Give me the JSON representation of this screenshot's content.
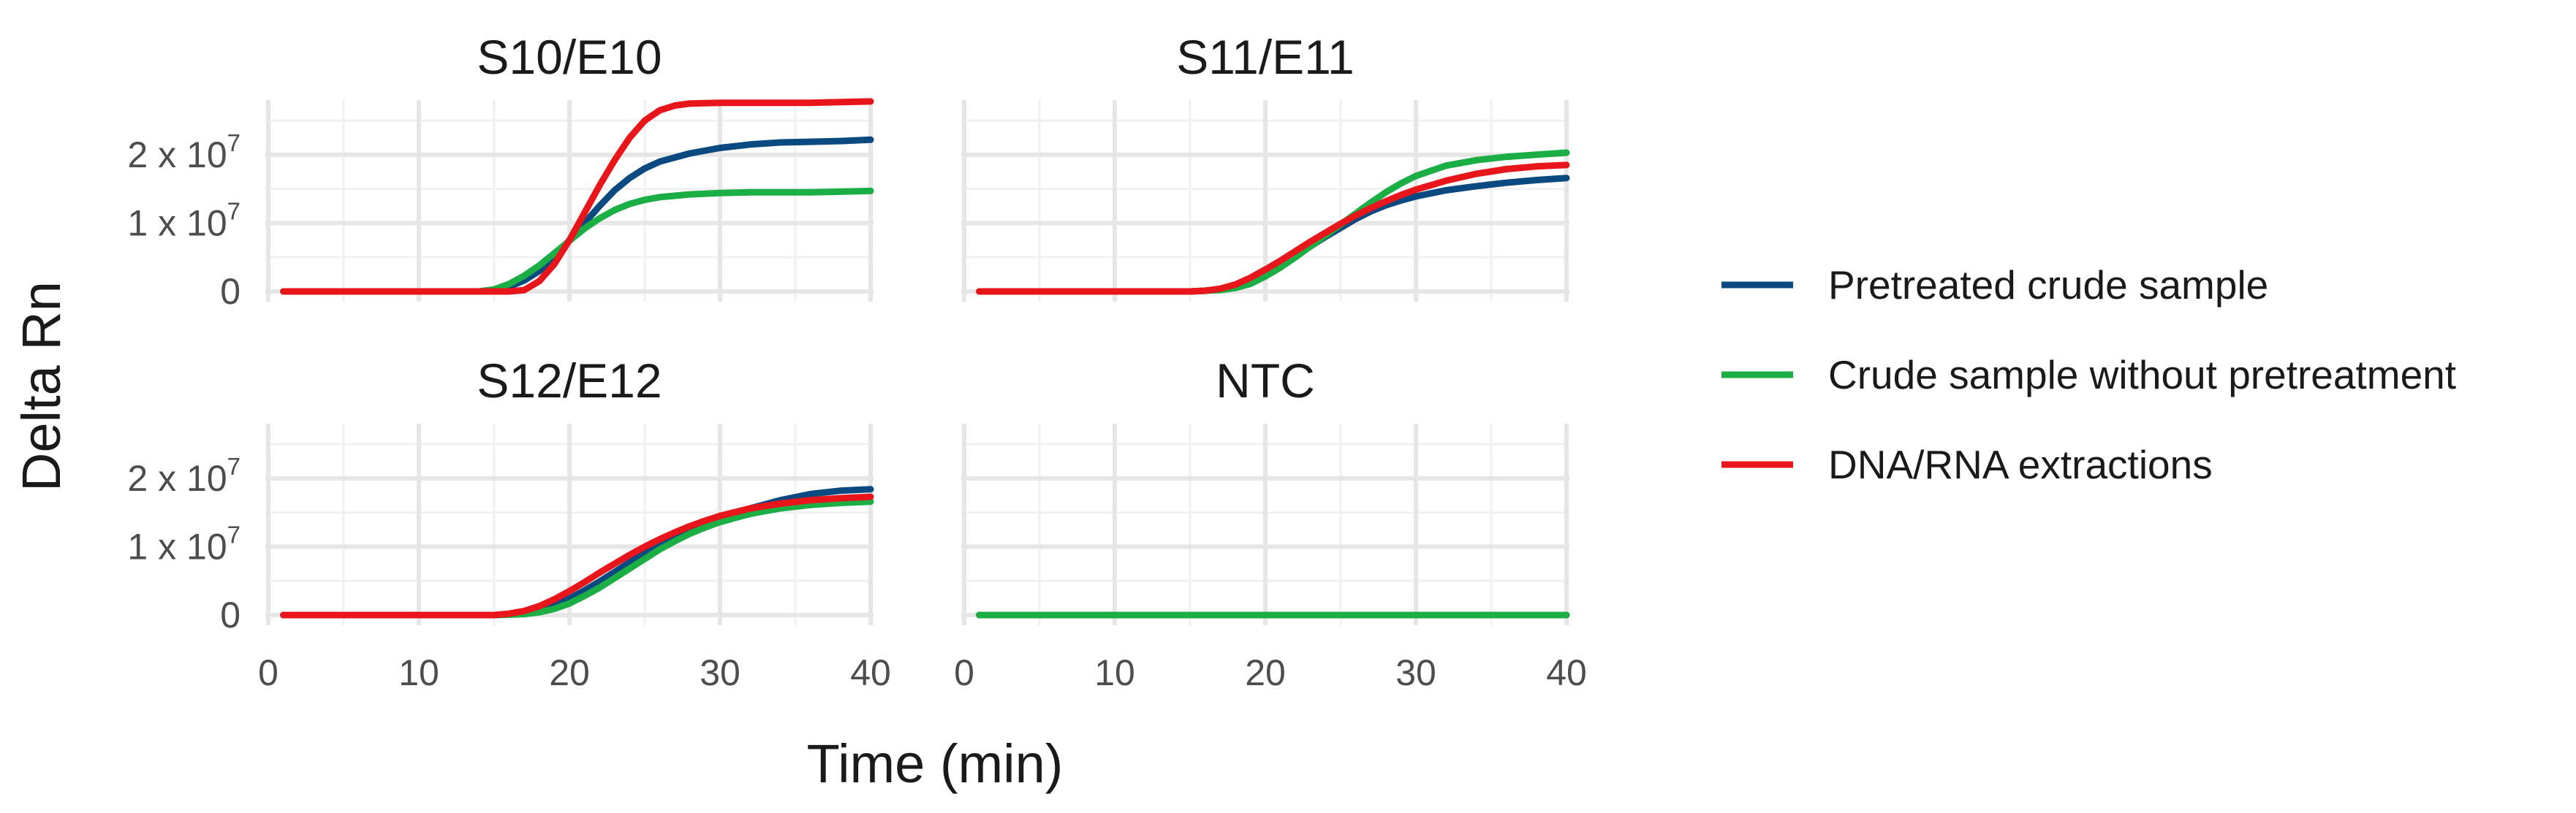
{
  "chart_data": {
    "type": "line",
    "layout": "facet-grid-2x2",
    "xlabel": "Time (min)",
    "ylabel": "Delta Rn",
    "xlim": [
      0,
      40
    ],
    "ylim": [
      -1500000,
      28000000
    ],
    "x_ticks": [
      0,
      10,
      20,
      30,
      40
    ],
    "y_ticks": [
      {
        "value": 0,
        "base": "0",
        "exp": ""
      },
      {
        "value": 10000000,
        "base": "1 x 10",
        "exp": "7"
      },
      {
        "value": 20000000,
        "base": "2 x 10",
        "exp": "7"
      }
    ],
    "grid": true,
    "legend_position": "right",
    "series_styles": [
      {
        "name": "Pretreated crude sample",
        "color": "#0b4a80"
      },
      {
        "name": "Crude sample without pretreatment",
        "color": "#1aae45"
      },
      {
        "name": "DNA/RNA extractions",
        "color": "#e8161b"
      }
    ],
    "panels": [
      {
        "title": "S10/E10",
        "series": [
          {
            "name": "Pretreated crude sample",
            "x": [
              1,
              5,
              10,
              14,
              15,
              16,
              17,
              18,
              19,
              20,
              21,
              22,
              23,
              24,
              25,
              26,
              28,
              30,
              32,
              34,
              36,
              38,
              40
            ],
            "y": [
              0,
              0,
              0,
              0,
              200000,
              700000,
              1600000,
              3000000,
              5000000,
              7500000,
              10000000,
              12500000,
              14800000,
              16600000,
              18000000,
              19000000,
              20200000,
              21000000,
              21500000,
              21800000,
              21900000,
              22000000,
              22200000
            ]
          },
          {
            "name": "Crude sample without pretreatment",
            "x": [
              1,
              5,
              10,
              14,
              15,
              16,
              17,
              18,
              19,
              20,
              21,
              22,
              23,
              24,
              25,
              26,
              28,
              30,
              32,
              34,
              36,
              38,
              40
            ],
            "y": [
              0,
              0,
              0,
              0,
              300000,
              1100000,
              2300000,
              3800000,
              5600000,
              7400000,
              9200000,
              10700000,
              11900000,
              12800000,
              13400000,
              13800000,
              14200000,
              14400000,
              14500000,
              14500000,
              14500000,
              14600000,
              14700000
            ]
          },
          {
            "name": "DNA/RNA extractions",
            "x": [
              1,
              5,
              10,
              14,
              15,
              16,
              17,
              18,
              19,
              20,
              21,
              22,
              23,
              24,
              25,
              26,
              27,
              28,
              30,
              32,
              34,
              36,
              38,
              40
            ],
            "y": [
              0,
              0,
              0,
              0,
              0,
              0,
              200000,
              1500000,
              4000000,
              7500000,
              11500000,
              15500000,
              19200000,
              22500000,
              25000000,
              26500000,
              27200000,
              27500000,
              27600000,
              27600000,
              27600000,
              27600000,
              27700000,
              27800000
            ]
          }
        ]
      },
      {
        "title": "S11/E11",
        "series": [
          {
            "name": "Pretreated crude sample",
            "x": [
              1,
              5,
              10,
              15,
              16,
              17,
              18,
              19,
              20,
              21,
              22,
              23,
              24,
              25,
              26,
              27,
              28,
              29,
              30,
              32,
              34,
              36,
              38,
              40
            ],
            "y": [
              0,
              0,
              0,
              0,
              100000,
              300000,
              800000,
              1600000,
              2700000,
              3900000,
              5200000,
              6600000,
              8000000,
              9300000,
              10600000,
              11700000,
              12600000,
              13300000,
              13900000,
              14800000,
              15400000,
              15900000,
              16300000,
              16600000
            ]
          },
          {
            "name": "Crude sample without pretreatment",
            "x": [
              1,
              5,
              10,
              15,
              16,
              17,
              18,
              19,
              20,
              21,
              22,
              23,
              24,
              25,
              26,
              27,
              28,
              29,
              30,
              32,
              34,
              36,
              38,
              40
            ],
            "y": [
              0,
              0,
              0,
              0,
              100000,
              200000,
              500000,
              1100000,
              2200000,
              3500000,
              5000000,
              6600000,
              8200000,
              9800000,
              11400000,
              13000000,
              14500000,
              15800000,
              16900000,
              18400000,
              19200000,
              19700000,
              20000000,
              20300000
            ]
          },
          {
            "name": "DNA/RNA extractions",
            "x": [
              1,
              5,
              10,
              15,
              16,
              17,
              18,
              19,
              20,
              21,
              22,
              23,
              24,
              25,
              26,
              27,
              28,
              29,
              30,
              32,
              34,
              36,
              38,
              40
            ],
            "y": [
              0,
              0,
              0,
              0,
              100000,
              400000,
              1000000,
              2000000,
              3200000,
              4500000,
              5900000,
              7300000,
              8600000,
              9900000,
              11100000,
              12200000,
              13200000,
              14100000,
              14900000,
              16200000,
              17200000,
              17900000,
              18300000,
              18500000
            ]
          }
        ]
      },
      {
        "title": "S12/E12",
        "series": [
          {
            "name": "Pretreated crude sample",
            "x": [
              1,
              5,
              10,
              15,
              16,
              17,
              18,
              19,
              20,
              21,
              22,
              23,
              24,
              25,
              26,
              27,
              28,
              29,
              30,
              32,
              34,
              36,
              38,
              40
            ],
            "y": [
              0,
              0,
              0,
              0,
              100000,
              300000,
              700000,
              1400000,
              2400000,
              3600000,
              4900000,
              6300000,
              7700000,
              9000000,
              10300000,
              11400000,
              12400000,
              13300000,
              14100000,
              15600000,
              16800000,
              17700000,
              18200000,
              18400000
            ]
          },
          {
            "name": "Crude sample without pretreatment",
            "x": [
              1,
              5,
              10,
              15,
              16,
              17,
              18,
              19,
              20,
              21,
              22,
              23,
              24,
              25,
              26,
              27,
              28,
              29,
              30,
              32,
              34,
              36,
              38,
              40
            ],
            "y": [
              0,
              0,
              0,
              0,
              50000,
              150000,
              400000,
              900000,
              1700000,
              2800000,
              4000000,
              5400000,
              6800000,
              8200000,
              9600000,
              10800000,
              11900000,
              12800000,
              13600000,
              14800000,
              15600000,
              16100000,
              16400000,
              16600000
            ]
          },
          {
            "name": "DNA/RNA extractions",
            "x": [
              1,
              5,
              10,
              15,
              16,
              17,
              18,
              19,
              20,
              21,
              22,
              23,
              24,
              25,
              26,
              27,
              28,
              29,
              30,
              32,
              34,
              36,
              38,
              40
            ],
            "y": [
              0,
              0,
              0,
              0,
              200000,
              600000,
              1300000,
              2300000,
              3500000,
              4800000,
              6200000,
              7500000,
              8800000,
              10000000,
              11100000,
              12100000,
              13000000,
              13800000,
              14500000,
              15600000,
              16300000,
              16800000,
              17100000,
              17300000
            ]
          }
        ]
      },
      {
        "title": "NTC",
        "series": [
          {
            "name": "Pretreated crude sample",
            "x": [
              1,
              40
            ],
            "y": [
              0,
              0
            ]
          },
          {
            "name": "DNA/RNA extractions",
            "x": [
              1,
              40
            ],
            "y": [
              0,
              0
            ]
          },
          {
            "name": "Crude sample without pretreatment",
            "x": [
              1,
              40
            ],
            "y": [
              0,
              0
            ]
          }
        ]
      }
    ]
  }
}
